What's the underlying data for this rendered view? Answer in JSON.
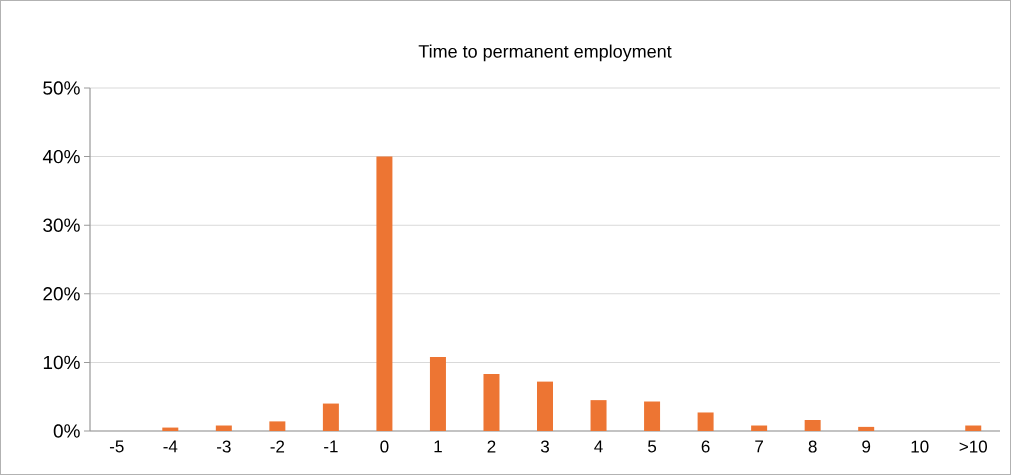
{
  "chart_data": {
    "type": "bar",
    "title": "Time to permanent employment",
    "categories": [
      "-5",
      "-4",
      "-3",
      "-2",
      "-1",
      "0",
      "1",
      "2",
      "3",
      "4",
      "5",
      "6",
      "7",
      "8",
      "9",
      "10",
      ">10"
    ],
    "values": [
      0,
      0.5,
      0.8,
      1.4,
      4.0,
      40,
      10.8,
      8.3,
      7.2,
      4.5,
      4.3,
      2.7,
      0.8,
      1.6,
      0.6,
      0,
      0.8
    ],
    "color": "#ed7533",
    "ylim": [
      0,
      50
    ],
    "yticks": [
      {
        "value": 0,
        "label": "0%"
      },
      {
        "value": 10,
        "label": "10%"
      },
      {
        "value": 20,
        "label": "20%"
      },
      {
        "value": 30,
        "label": "30%"
      },
      {
        "value": 40,
        "label": "40%"
      },
      {
        "value": 50,
        "label": "50%"
      }
    ],
    "grid": "y"
  }
}
